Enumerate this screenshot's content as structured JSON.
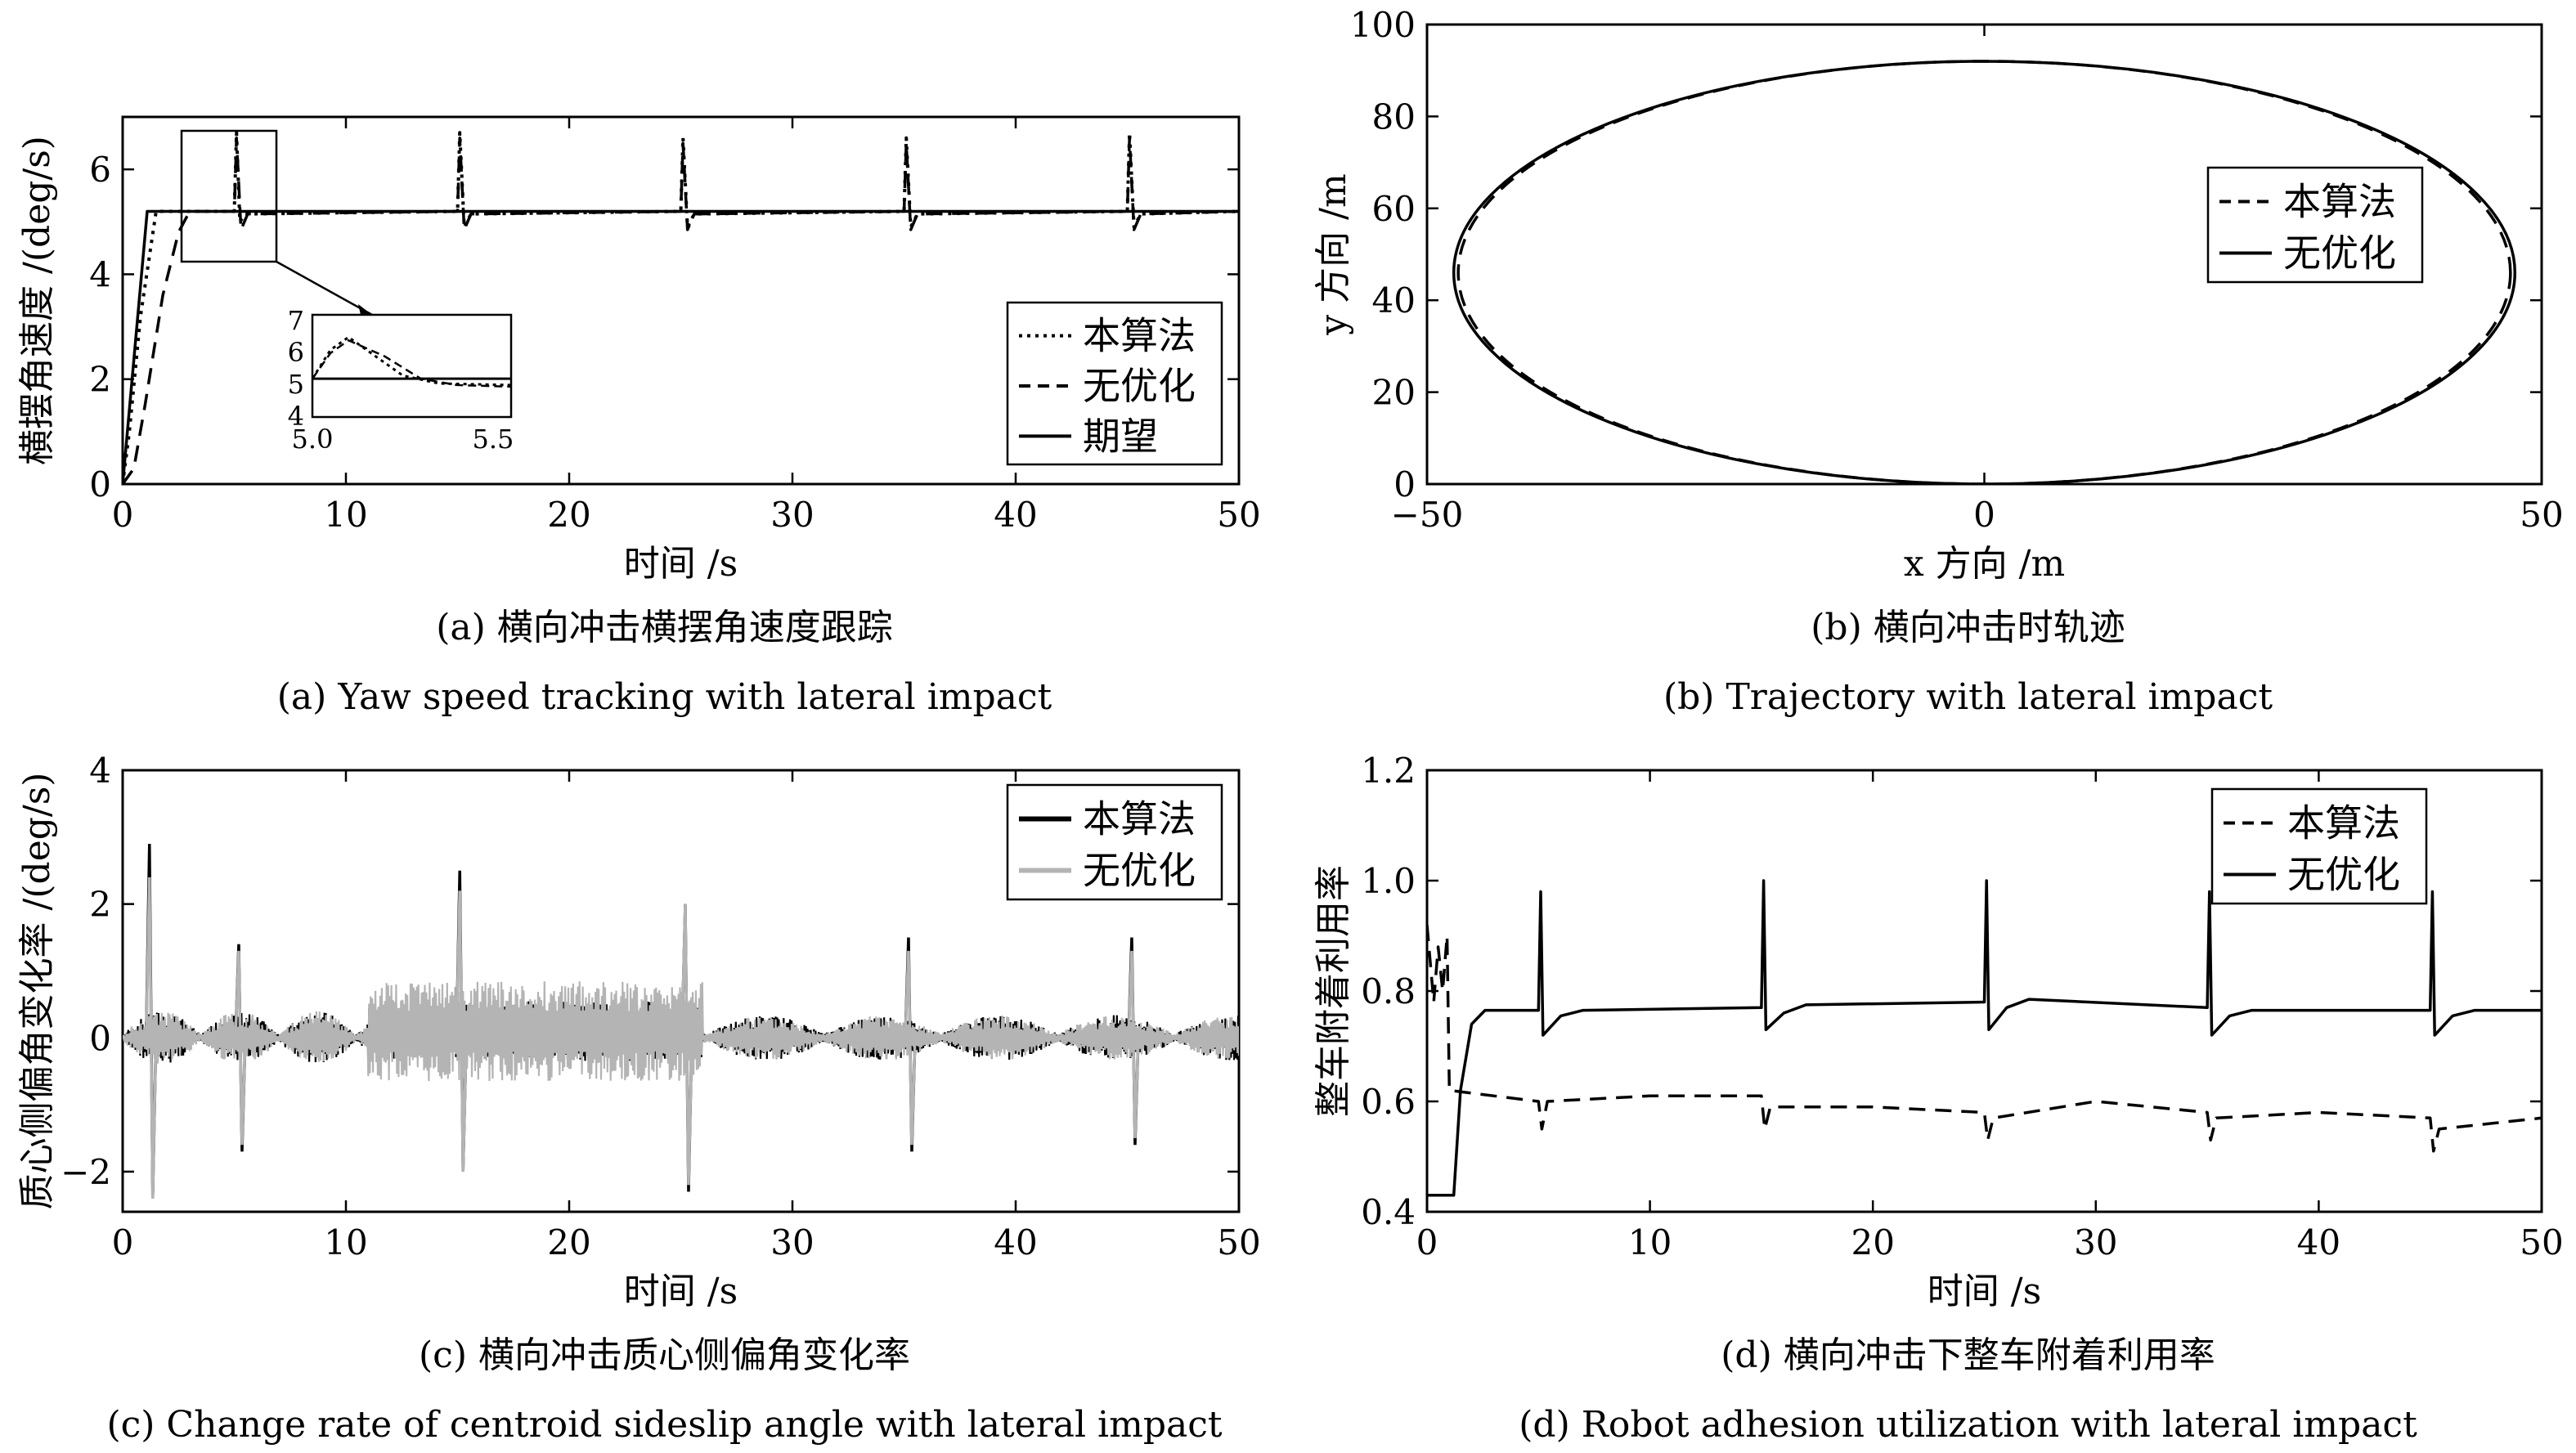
{
  "charts": [
    {
      "id": "a",
      "type": "line",
      "xlabel": "时间 /s",
      "ylabel": "横摆角速度 /(deg/s)",
      "xlim": [
        0,
        50
      ],
      "ylim": [
        0,
        7
      ],
      "xticks": [
        "0",
        "10",
        "20",
        "30",
        "40",
        "50"
      ],
      "yticks": [
        "0",
        "2",
        "4",
        "6"
      ],
      "caption_cn": "(a) 横向冲击横摆角速度跟踪",
      "caption_en": "(a) Yaw speed tracking with lateral impact",
      "legend": [
        "本算法",
        "无优化",
        "期望"
      ],
      "inset": {
        "xticks": [
          "5.0",
          "5.5"
        ],
        "yticks": [
          "7",
          "6",
          "5",
          "4"
        ]
      },
      "chart_data": {
        "type": "line",
        "series": [
          {
            "name": "本算法",
            "style": "dotted",
            "points": [
              [
                0,
                0
              ],
              [
                0.3,
                1.0
              ],
              [
                0.8,
                3.2
              ],
              [
                1.5,
                5.2
              ],
              [
                5.0,
                5.2
              ],
              [
                5.1,
                6.7
              ],
              [
                5.25,
                5.0
              ],
              [
                5.5,
                5.15
              ],
              [
                15.0,
                5.2
              ],
              [
                15.1,
                6.7
              ],
              [
                15.3,
                4.9
              ],
              [
                15.6,
                5.15
              ],
              [
                25.0,
                5.2
              ],
              [
                25.1,
                6.6
              ],
              [
                25.3,
                4.9
              ],
              [
                25.6,
                5.15
              ],
              [
                35.0,
                5.2
              ],
              [
                35.1,
                6.6
              ],
              [
                35.3,
                4.9
              ],
              [
                35.6,
                5.15
              ],
              [
                45.0,
                5.2
              ],
              [
                45.1,
                6.7
              ],
              [
                45.3,
                4.9
              ],
              [
                45.6,
                5.15
              ],
              [
                50,
                5.2
              ]
            ]
          },
          {
            "name": "无优化",
            "style": "dashed",
            "points": [
              [
                0,
                0
              ],
              [
                0.5,
                0.3
              ],
              [
                1.0,
                1.5
              ],
              [
                1.8,
                3.6
              ],
              [
                2.5,
                4.8
              ],
              [
                3.0,
                5.2
              ],
              [
                5.0,
                5.2
              ],
              [
                5.1,
                6.6
              ],
              [
                5.3,
                4.85
              ],
              [
                5.6,
                5.15
              ],
              [
                15.0,
                5.2
              ],
              [
                15.1,
                6.6
              ],
              [
                15.3,
                4.85
              ],
              [
                15.6,
                5.15
              ],
              [
                25.0,
                5.2
              ],
              [
                25.1,
                6.5
              ],
              [
                25.3,
                4.85
              ],
              [
                25.6,
                5.15
              ],
              [
                35.0,
                5.2
              ],
              [
                35.1,
                6.5
              ],
              [
                35.3,
                4.85
              ],
              [
                35.6,
                5.15
              ],
              [
                45.0,
                5.2
              ],
              [
                45.1,
                6.6
              ],
              [
                45.3,
                4.85
              ],
              [
                45.6,
                5.15
              ],
              [
                50,
                5.2
              ]
            ]
          },
          {
            "name": "期望",
            "style": "solid",
            "points": [
              [
                0,
                0
              ],
              [
                1.1,
                5.2
              ],
              [
                50,
                5.2
              ]
            ]
          }
        ]
      }
    },
    {
      "id": "b",
      "type": "line",
      "xlabel": "x 方向 /m",
      "ylabel": "y 方向 /m",
      "xlim": [
        -50,
        50
      ],
      "ylim": [
        0,
        100
      ],
      "xticks": [
        "−50",
        "0",
        "50"
      ],
      "yticks": [
        "0",
        "20",
        "40",
        "60",
        "80",
        "100"
      ],
      "caption_cn": "(b) 横向冲击时轨迹",
      "caption_en": "(b) Trajectory with lateral impact",
      "legend": [
        "本算法",
        "无优化"
      ],
      "chart_data": {
        "type": "line",
        "series": [
          {
            "name": "本算法",
            "style": "dashed",
            "ellipse": {
              "cx": 0,
              "cy": 46,
              "rx": 47.2,
              "ry": 46
            }
          },
          {
            "name": "无优化",
            "style": "solid",
            "ellipse": {
              "cx": 0,
              "cy": 46,
              "rx": 47.6,
              "ry": 46
            }
          }
        ]
      }
    },
    {
      "id": "c",
      "type": "line",
      "xlabel": "时间 /s",
      "ylabel": "质心侧偏角变化率 /(deg/s)",
      "xlim": [
        0,
        50
      ],
      "ylim": [
        -2.6,
        4
      ],
      "xticks": [
        "0",
        "10",
        "20",
        "30",
        "40",
        "50"
      ],
      "yticks": [
        "−2",
        "0",
        "2",
        "4"
      ],
      "caption_cn": "(c) 横向冲击质心侧偏角变化率",
      "caption_en": "(c) Change rate of centroid sideslip angle with lateral impact",
      "legend": [
        "本算法",
        "无优化"
      ],
      "chart_data": {
        "type": "line",
        "series": [
          {
            "name": "本算法",
            "color": "#000000",
            "spikes": [
              [
                1.2,
                2.9,
                -2.4
              ],
              [
                5.2,
                1.4,
                -1.7
              ],
              [
                15.1,
                2.5,
                -2.0
              ],
              [
                25.2,
                2.0,
                -2.3
              ],
              [
                35.2,
                1.5,
                -1.7
              ],
              [
                45.2,
                1.5,
                -1.6
              ]
            ]
          },
          {
            "name": "无优化",
            "color": "#b4b4b4",
            "spikes": [
              [
                1.2,
                2.4,
                -2.4
              ],
              [
                5.2,
                1.3,
                -1.6
              ],
              [
                15.1,
                2.2,
                -2.0
              ],
              [
                25.2,
                2.0,
                -2.2
              ],
              [
                35.2,
                1.3,
                -1.6
              ],
              [
                45.2,
                1.3,
                -1.5
              ]
            ]
          }
        ]
      }
    },
    {
      "id": "d",
      "type": "line",
      "xlabel": "时间 /s",
      "ylabel": "整车附着利用率",
      "xlim": [
        0,
        50
      ],
      "ylim": [
        0.4,
        1.2
      ],
      "xticks": [
        "0",
        "10",
        "20",
        "30",
        "40",
        "50"
      ],
      "yticks": [
        "0.4",
        "0.6",
        "0.8",
        "1.0",
        "1.2"
      ],
      "caption_cn": "(d) 横向冲击下整车附着利用率",
      "caption_en": "(d) Robot adhesion utilization with lateral impact",
      "legend": [
        "本算法",
        "无优化"
      ],
      "chart_data": {
        "type": "line",
        "series": [
          {
            "name": "本算法",
            "style": "dashed",
            "points": [
              [
                0,
                0.92
              ],
              [
                0.3,
                0.78
              ],
              [
                0.5,
                0.88
              ],
              [
                0.7,
                0.8
              ],
              [
                0.9,
                0.9
              ],
              [
                1.0,
                0.62
              ],
              [
                5.0,
                0.6
              ],
              [
                5.15,
                0.55
              ],
              [
                5.4,
                0.6
              ],
              [
                10,
                0.61
              ],
              [
                15.0,
                0.61
              ],
              [
                15.15,
                0.55
              ],
              [
                15.4,
                0.59
              ],
              [
                20,
                0.59
              ],
              [
                25.0,
                0.58
              ],
              [
                25.15,
                0.53
              ],
              [
                25.4,
                0.57
              ],
              [
                30,
                0.6
              ],
              [
                35.0,
                0.58
              ],
              [
                35.15,
                0.53
              ],
              [
                35.4,
                0.57
              ],
              [
                40,
                0.58
              ],
              [
                45.0,
                0.57
              ],
              [
                45.15,
                0.51
              ],
              [
                45.4,
                0.55
              ],
              [
                50,
                0.57
              ]
            ]
          },
          {
            "name": "无优化",
            "style": "solid",
            "points": [
              [
                0,
                0.43
              ],
              [
                1.2,
                0.43
              ],
              [
                1.5,
                0.62
              ],
              [
                2.0,
                0.74
              ],
              [
                2.6,
                0.765
              ],
              [
                5.0,
                0.765
              ],
              [
                5.1,
                0.98
              ],
              [
                5.2,
                0.72
              ],
              [
                6.0,
                0.755
              ],
              [
                7.0,
                0.765
              ],
              [
                15.0,
                0.77
              ],
              [
                15.1,
                1.0
              ],
              [
                15.2,
                0.73
              ],
              [
                16.0,
                0.76
              ],
              [
                17.0,
                0.775
              ],
              [
                25.0,
                0.78
              ],
              [
                25.1,
                1.0
              ],
              [
                25.2,
                0.73
              ],
              [
                26.0,
                0.77
              ],
              [
                27.0,
                0.785
              ],
              [
                35.0,
                0.77
              ],
              [
                35.1,
                0.98
              ],
              [
                35.2,
                0.72
              ],
              [
                36.0,
                0.755
              ],
              [
                37.0,
                0.765
              ],
              [
                45.0,
                0.765
              ],
              [
                45.1,
                0.98
              ],
              [
                45.2,
                0.72
              ],
              [
                46.0,
                0.755
              ],
              [
                47.0,
                0.765
              ],
              [
                50,
                0.765
              ]
            ]
          }
        ]
      }
    }
  ]
}
